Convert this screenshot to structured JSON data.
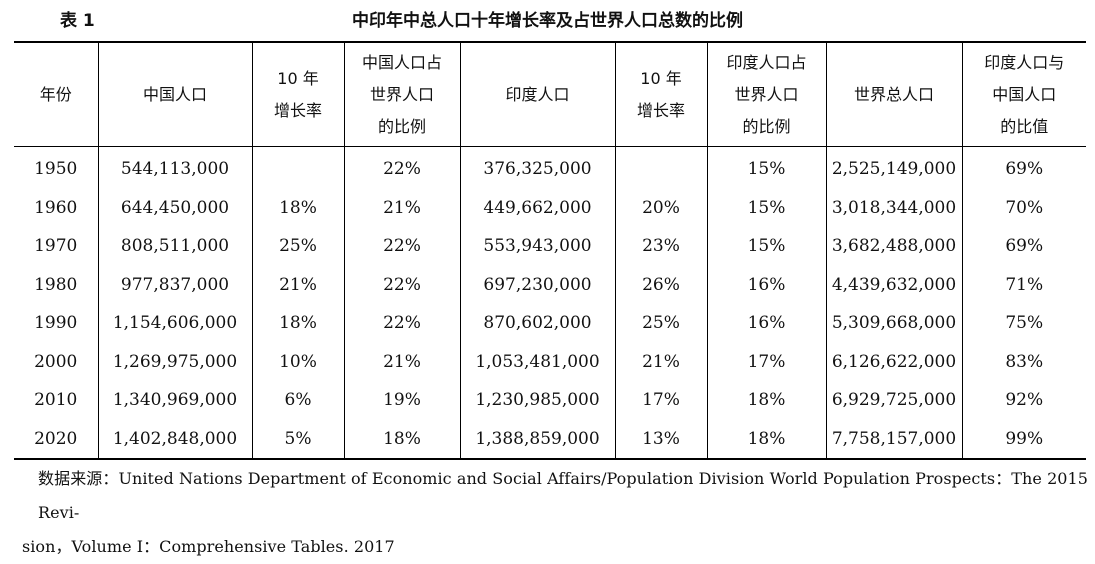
{
  "caption": {
    "label": "表 1",
    "title": "中印年中总人口十年增长率及占世界人口总数的比例"
  },
  "table": {
    "headers": [
      [
        "年份"
      ],
      [
        "中国人口"
      ],
      [
        "10 年",
        "增长率"
      ],
      [
        "中国人口占",
        "世界人口",
        "的比例"
      ],
      [
        "印度人口"
      ],
      [
        "10 年",
        "增长率"
      ],
      [
        "印度人口占",
        "世界人口",
        "的比例"
      ],
      [
        "世界总人口"
      ],
      [
        "印度人口与",
        "中国人口",
        "的比值"
      ]
    ],
    "rows": [
      [
        "1950",
        "544,113,000",
        "",
        "22%",
        "376,325,000",
        "",
        "15%",
        "2,525,149,000",
        "69%"
      ],
      [
        "1960",
        "644,450,000",
        "18%",
        "21%",
        "449,662,000",
        "20%",
        "15%",
        "3,018,344,000",
        "70%"
      ],
      [
        "1970",
        "808,511,000",
        "25%",
        "22%",
        "553,943,000",
        "23%",
        "15%",
        "3,682,488,000",
        "69%"
      ],
      [
        "1980",
        "977,837,000",
        "21%",
        "22%",
        "697,230,000",
        "26%",
        "16%",
        "4,439,632,000",
        "71%"
      ],
      [
        "1990",
        "1,154,606,000",
        "18%",
        "22%",
        "870,602,000",
        "25%",
        "16%",
        "5,309,668,000",
        "75%"
      ],
      [
        "2000",
        "1,269,975,000",
        "10%",
        "21%",
        "1,053,481,000",
        "21%",
        "17%",
        "6,126,622,000",
        "83%"
      ],
      [
        "2010",
        "1,340,969,000",
        "6%",
        "19%",
        "1,230,985,000",
        "17%",
        "18%",
        "6,929,725,000",
        "92%"
      ],
      [
        "2020",
        "1,402,848,000",
        "5%",
        "18%",
        "1,388,859,000",
        "13%",
        "18%",
        "7,758,157,000",
        "99%"
      ]
    ]
  },
  "source": {
    "line1": "数据来源：United Nations Department of Economic and Social Affairs/Population Division World Population Prospects：The 2015 Revi-",
    "line2": "sion，Volume I：Comprehensive Tables. 2017"
  }
}
